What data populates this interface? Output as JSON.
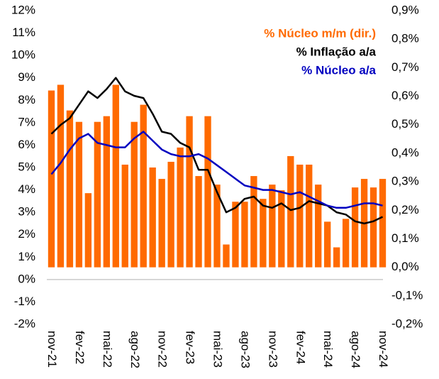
{
  "chart_data": {
    "type": "bar_line",
    "categories": [
      "nov-21",
      null,
      null,
      "fev-22",
      null,
      null,
      "mai-22",
      null,
      null,
      "ago-22",
      null,
      null,
      "nov-22",
      null,
      null,
      "fev-23",
      null,
      null,
      "mai-23",
      null,
      null,
      "ago-23",
      null,
      null,
      "nov-23",
      null,
      null,
      "fev-24",
      null,
      null,
      "mai-24",
      null,
      null,
      "ago-24",
      null,
      null,
      "nov-24"
    ],
    "series": [
      {
        "name": "% Núcleo m/m (dir.)",
        "type": "bar",
        "axis": "y2",
        "color": "#ff6a00",
        "values": [
          0.62,
          0.64,
          0.55,
          0.51,
          0.26,
          0.51,
          0.53,
          0.64,
          0.36,
          0.51,
          0.57,
          0.35,
          0.31,
          0.37,
          0.42,
          0.53,
          0.32,
          0.53,
          0.29,
          0.08,
          0.23,
          0.23,
          0.32,
          0.24,
          0.29,
          0.27,
          0.39,
          0.36,
          0.36,
          0.29,
          0.16,
          0.07,
          0.17,
          0.28,
          0.31,
          0.28,
          0.31
        ]
      },
      {
        "name": "% Inflação a/a",
        "type": "line",
        "color": "#000000",
        "values": [
          6.5,
          6.9,
          7.2,
          7.8,
          8.4,
          8.1,
          8.5,
          9.0,
          8.4,
          8.2,
          8.1,
          7.4,
          6.6,
          6.5,
          6.1,
          5.9,
          4.9,
          4.9,
          3.9,
          3.0,
          3.2,
          3.6,
          3.7,
          3.3,
          3.2,
          3.4,
          3.1,
          3.2,
          3.5,
          3.4,
          3.3,
          3.0,
          2.9,
          2.6,
          2.5,
          2.6,
          2.8
        ]
      },
      {
        "name": "% Núcleo a/a",
        "type": "line",
        "color": "#0000c0",
        "values": [
          4.7,
          5.2,
          5.8,
          6.3,
          6.5,
          6.1,
          6.0,
          5.9,
          5.9,
          6.3,
          6.6,
          6.2,
          5.8,
          5.6,
          5.5,
          5.5,
          5.6,
          5.4,
          5.1,
          4.8,
          4.5,
          4.2,
          4.1,
          4.0,
          4.0,
          3.9,
          3.8,
          3.9,
          3.7,
          3.5,
          3.3,
          3.2,
          3.2,
          3.3,
          3.4,
          3.4,
          3.3
        ]
      }
    ],
    "ylim": [
      -2,
      12
    ],
    "yticks": [
      {
        "value": -2,
        "label": "-2%"
      },
      {
        "value": -1,
        "label": "-1%"
      },
      {
        "value": 0,
        "label": "0%"
      },
      {
        "value": 1,
        "label": "1%"
      },
      {
        "value": 2,
        "label": "2%"
      },
      {
        "value": 3,
        "label": "3%"
      },
      {
        "value": 4,
        "label": "4%"
      },
      {
        "value": 5,
        "label": "5%"
      },
      {
        "value": 6,
        "label": "6%"
      },
      {
        "value": 7,
        "label": "7%"
      },
      {
        "value": 8,
        "label": "8%"
      },
      {
        "value": 9,
        "label": "9%"
      },
      {
        "value": 10,
        "label": "10%"
      },
      {
        "value": 11,
        "label": "11%"
      },
      {
        "value": 12,
        "label": "12%"
      }
    ],
    "y2lim": [
      -0.2,
      0.9
    ],
    "y2ticks": [
      {
        "value": -0.2,
        "label": "-0,2%"
      },
      {
        "value": -0.1,
        "label": "-0,1%"
      },
      {
        "value": 0,
        "label": "0,0%"
      },
      {
        "value": 0.1,
        "label": "0,1%"
      },
      {
        "value": 0.2,
        "label": "0,2%"
      },
      {
        "value": 0.3,
        "label": "0,3%"
      },
      {
        "value": 0.4,
        "label": "0,4%"
      },
      {
        "value": 0.5,
        "label": "0,5%"
      },
      {
        "value": 0.6,
        "label": "0,6%"
      },
      {
        "value": 0.7,
        "label": "0,7%"
      },
      {
        "value": 0.8,
        "label": "0,8%"
      },
      {
        "value": 0.9,
        "label": "0,9%"
      }
    ],
    "zero_line_color": "#bfbfbf"
  }
}
